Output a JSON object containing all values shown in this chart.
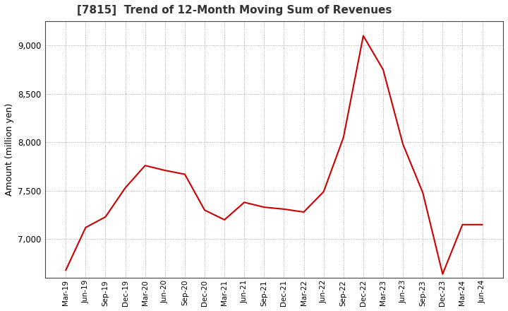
{
  "title": "[7815]  Trend of 12-Month Moving Sum of Revenues",
  "ylabel": "Amount (million yen)",
  "line_color": "#cc0000",
  "background_color": "#ffffff",
  "plot_bg_color": "#ffffff",
  "grid_color": "#999999",
  "ylim": [
    6600,
    9250
  ],
  "yticks": [
    7000,
    7500,
    8000,
    8500,
    9000
  ],
  "labels": [
    "Mar-19",
    "Jun-19",
    "Sep-19",
    "Dec-19",
    "Mar-20",
    "Jun-20",
    "Sep-20",
    "Dec-20",
    "Mar-21",
    "Jun-21",
    "Sep-21",
    "Dec-21",
    "Mar-22",
    "Jun-22",
    "Sep-22",
    "Dec-22",
    "Mar-23",
    "Jun-23",
    "Sep-23",
    "Dec-23",
    "Mar-24",
    "Jun-24"
  ],
  "values": [
    6680,
    7120,
    7230,
    7530,
    7760,
    7710,
    7670,
    7300,
    7200,
    7380,
    7330,
    7310,
    7280,
    7490,
    8050,
    9100,
    8750,
    7980,
    7480,
    6640,
    7150,
    7150
  ]
}
